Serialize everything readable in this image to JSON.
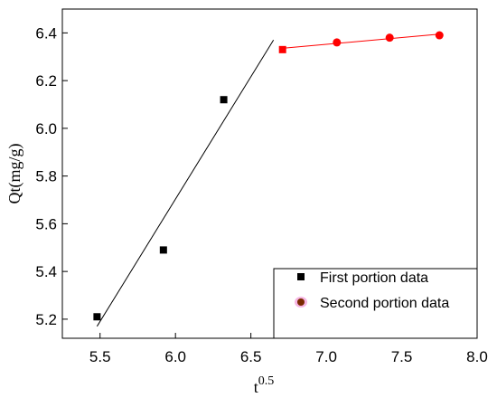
{
  "chart_data": {
    "type": "scatter",
    "xlabel": "t",
    "xlabel_sup": "0.5",
    "ylabel": "Qt(mg/g)",
    "xlim": [
      5.25,
      8.0
    ],
    "ylim": [
      5.12,
      6.5
    ],
    "x_ticks": [
      5.5,
      6.0,
      6.5,
      7.0,
      7.5,
      8.0
    ],
    "x_tick_labels": [
      "5.5",
      "6.0",
      "6.5",
      "7.0",
      "7.5",
      "8.0"
    ],
    "y_ticks": [
      5.2,
      5.4,
      5.6,
      5.8,
      6.0,
      6.2,
      6.4
    ],
    "y_tick_labels": [
      "5.2",
      "5.4",
      "5.6",
      "5.8",
      "6.0",
      "6.2",
      "6.4"
    ],
    "legend_position": "bottom-right",
    "series": [
      {
        "name": "First portion data",
        "marker": "square",
        "color": "#000000",
        "points": [
          {
            "x": 5.48,
            "y": 5.21
          },
          {
            "x": 5.92,
            "y": 5.49
          },
          {
            "x": 6.32,
            "y": 6.12
          }
        ],
        "fit_line": {
          "x": [
            5.48,
            6.65
          ],
          "y": [
            5.17,
            6.37
          ],
          "color": "#000000"
        }
      },
      {
        "name": "Second portion data",
        "marker": "circle",
        "color": "#ff0000",
        "points": [
          {
            "x": 6.71,
            "y": 6.33,
            "marker": "square"
          },
          {
            "x": 7.07,
            "y": 6.36
          },
          {
            "x": 7.42,
            "y": 6.38
          },
          {
            "x": 7.75,
            "y": 6.39
          }
        ],
        "fit_line": {
          "x": [
            6.7,
            7.75
          ],
          "y": [
            6.335,
            6.395
          ],
          "color": "#ff0000"
        }
      }
    ]
  }
}
